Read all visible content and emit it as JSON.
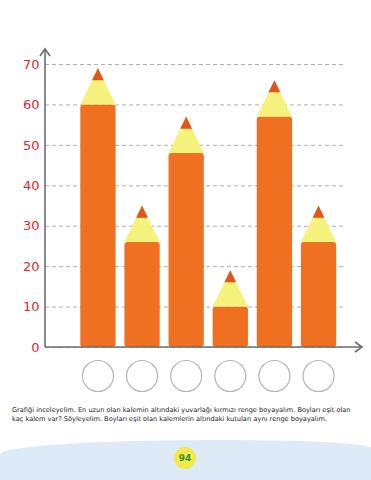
{
  "chart_data": {
    "type": "bar",
    "categories": [
      null,
      null,
      null,
      null,
      null,
      null
    ],
    "values": [
      69,
      35,
      57,
      19,
      66,
      35
    ],
    "color": "#f07021",
    "ylim": [
      0,
      70
    ],
    "yticks": [
      0,
      10,
      20,
      30,
      40,
      50,
      60,
      70
    ],
    "grid": true,
    "tick_labels": "y",
    "caption": "Grafiği inceleyelim. En uzun olan kalemin altındaki yuvarlağı kırmızı renge boyayalım. Boyları eşit olan kaç kalem var? Söyleyelim. Boyları eşit olan kalemlerin altındaki kutuları aynı renge boyayalım.",
    "annotations": [
      "94"
    ]
  }
}
